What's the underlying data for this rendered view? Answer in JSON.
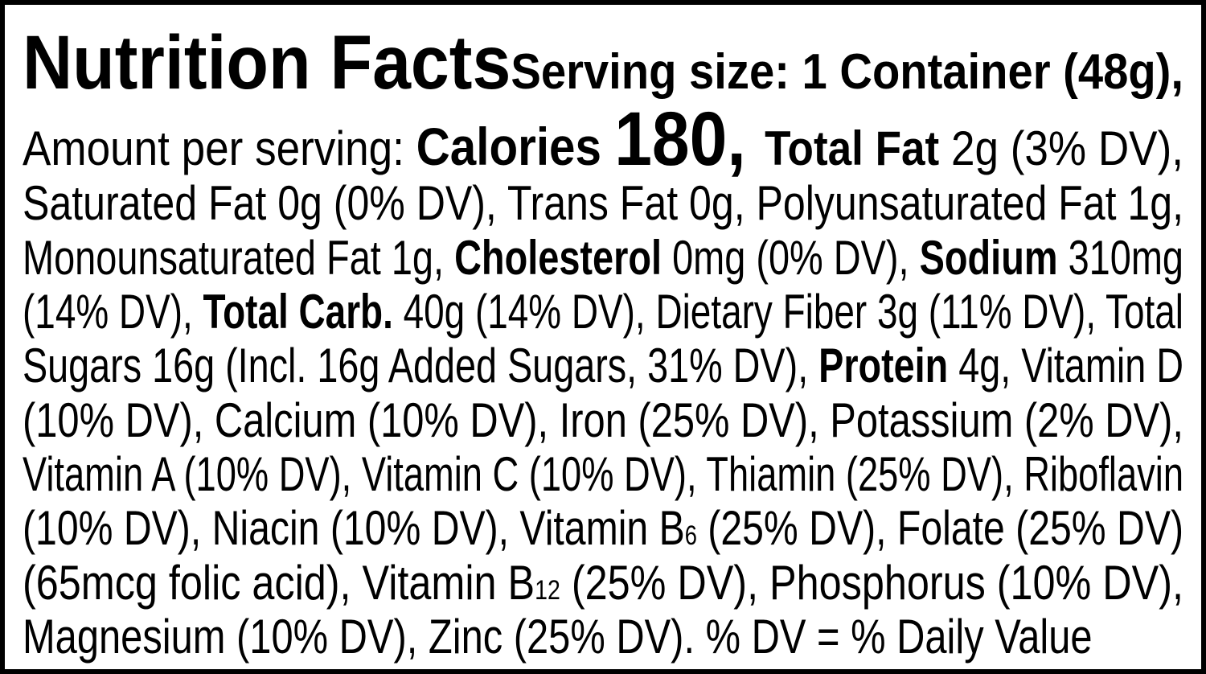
{
  "title": "Nutrition Facts",
  "serving_size": "Serving size: 1 Container (48g),",
  "lines": [
    [
      "Amount per serving: ",
      "Calories ",
      "180, ",
      "Total Fat ",
      "2g (3% DV),"
    ],
    [
      "Saturated Fat 0g (0% DV), Trans Fat 0g, Polyunsaturated Fat 1g,"
    ],
    [
      "Monounsaturated Fat 1g, ",
      "Cholesterol ",
      "0mg (0% DV), ",
      "Sodium ",
      "310mg"
    ],
    [
      "(14% DV), ",
      "Total Carb. ",
      "40g (14% DV), Dietary Fiber 3g (11% DV), Total"
    ],
    [
      "Sugars 16g (Incl. 16g Added Sugars, 31% DV), ",
      "Protein ",
      "4g, Vitamin D"
    ],
    [
      "(10% DV), Calcium (10% DV), Iron (25% DV), Potassium (2% DV),"
    ],
    [
      "Vitamin A (10% DV), Vitamin C (10% DV), Thiamin (25% DV), Riboflavin"
    ],
    [
      "(10% DV), Niacin (10% DV), Vitamin B",
      "6",
      " (25% DV), Folate (25% DV)"
    ],
    [
      "(65mcg folic acid), Vitamin B",
      "12",
      " (25% DV), Phosphorus (10% DV),"
    ],
    [
      "Magnesium (10% DV), Zinc (25% DV). % DV = % Daily Value"
    ]
  ]
}
